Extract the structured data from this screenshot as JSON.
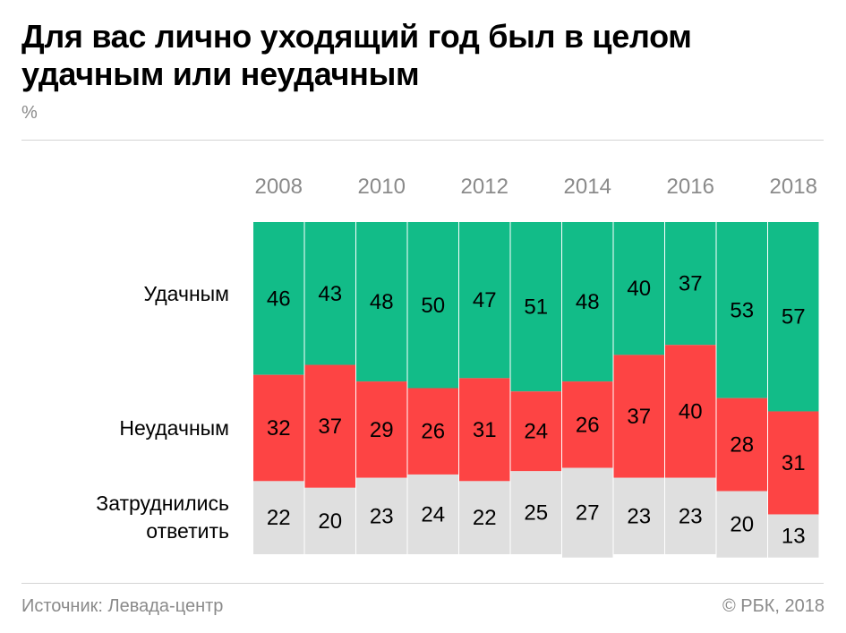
{
  "title": "Для вас лично уходящий год был в целом удачным или неудачным",
  "unit": "%",
  "source": "Источник: Левада-центр",
  "copyright": "© РБК, 2018",
  "colors": {
    "success": "#12bc88",
    "fail": "#fd4444",
    "undecided": "#dfdfdf"
  },
  "chart_data": {
    "type": "bar",
    "stacked": true,
    "categories": [
      "2008",
      "2009",
      "2010",
      "2011",
      "2012",
      "2013",
      "2014",
      "2015",
      "2016",
      "2017",
      "2018"
    ],
    "tick_labels": [
      "2008",
      "2010",
      "2012",
      "2014",
      "2016",
      "2018"
    ],
    "series": [
      {
        "name": "Удачным",
        "values": [
          46,
          43,
          48,
          50,
          47,
          51,
          48,
          40,
          37,
          53,
          57
        ]
      },
      {
        "name": "Неудачным",
        "values": [
          32,
          37,
          29,
          26,
          31,
          24,
          26,
          37,
          40,
          28,
          31
        ]
      },
      {
        "name": "Затруднились ответить",
        "values": [
          22,
          20,
          23,
          24,
          22,
          25,
          27,
          23,
          23,
          20,
          13
        ]
      }
    ],
    "ylim": [
      0,
      100
    ],
    "grid": false,
    "legend": "left"
  }
}
